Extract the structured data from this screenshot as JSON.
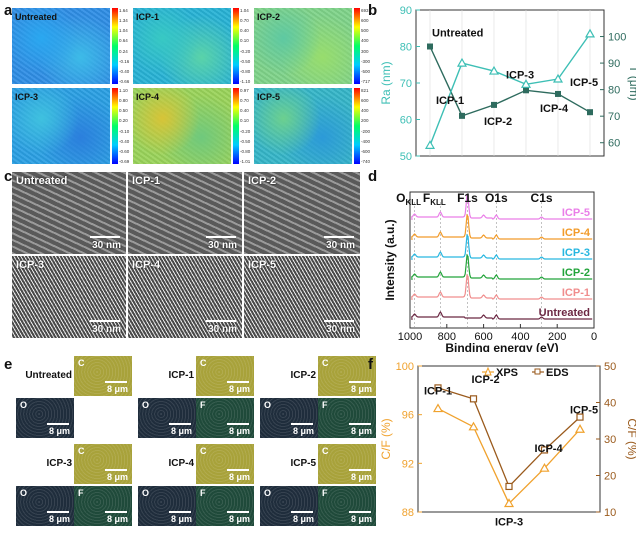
{
  "panels": {
    "a": {
      "letter": "a",
      "maps": [
        {
          "label": "Untreated",
          "colors": [
            "#2f8ee6",
            "#2aa8f0",
            "#3dbbe8"
          ],
          "ticks": [
            "1.64",
            "1.34",
            "1.04",
            "0.64",
            "0.24",
            "-0.16",
            "-0.40",
            "-0.66"
          ]
        },
        {
          "label": "ICP-1",
          "colors": [
            "#27b3d6",
            "#38c9c3",
            "#5ad3a9"
          ],
          "ticks": [
            "1.04",
            "0.70",
            "0.40",
            "0.10",
            "-0.20",
            "-0.50",
            "-0.80",
            "-1.10"
          ]
        },
        {
          "label": "ICP-2",
          "colors": [
            "#7fd48a",
            "#5ec9a2",
            "#98dd6d"
          ],
          "ticks": [
            "693",
            "600",
            "500",
            "400",
            "300",
            "-300",
            "-500",
            "-717"
          ]
        },
        {
          "label": "ICP-3",
          "colors": [
            "#2aa0e4",
            "#3fc1df",
            "#2b7fdd"
          ],
          "ticks": [
            "1.10",
            "0.80",
            "0.50",
            "0.20",
            "-0.10",
            "-0.40",
            "-0.60",
            "-0.69"
          ]
        },
        {
          "label": "ICP-4",
          "colors": [
            "#9ad45a",
            "#d7c437",
            "#6fc97d"
          ],
          "ticks": [
            "0.97",
            "0.70",
            "0.40",
            "0.10",
            "-0.20",
            "-0.50",
            "-0.80",
            "-1.01"
          ]
        },
        {
          "label": "ICP-5",
          "colors": [
            "#35b6c9",
            "#6cd08f",
            "#2c9ad8"
          ],
          "ticks": [
            "821",
            "600",
            "400",
            "200",
            "-200",
            "-400",
            "-600",
            "-740"
          ]
        }
      ]
    },
    "b": {
      "letter": "b"
    },
    "c": {
      "letter": "c",
      "images": [
        {
          "label": "Untreated",
          "scale": "30 nm"
        },
        {
          "label": "ICP-1",
          "scale": "30 nm"
        },
        {
          "label": "ICP-2",
          "scale": "30 nm"
        },
        {
          "label": "ICP-3",
          "scale": "30 nm"
        },
        {
          "label": "ICP-4",
          "scale": "30 nm"
        },
        {
          "label": "ICP-5",
          "scale": "30 nm"
        }
      ]
    },
    "d": {
      "letter": "d"
    },
    "e": {
      "letter": "e",
      "samples": [
        {
          "label": "Untreated",
          "scale": "8 μm"
        },
        {
          "label": "ICP-1",
          "scale": "8 μm"
        },
        {
          "label": "ICP-2",
          "scale": "8 μm"
        },
        {
          "label": "ICP-3",
          "scale": "8 μm"
        },
        {
          "label": "ICP-4",
          "scale": "8 μm"
        },
        {
          "label": "ICP-5",
          "scale": "8 μm"
        }
      ],
      "elements": {
        "c": "C",
        "o": "O",
        "f": "F"
      },
      "tile_colors": {
        "c": "#a8a23a",
        "o": "#1f2d3c",
        "f": "#1f4a3a"
      }
    },
    "f": {
      "letter": "f"
    }
  },
  "chart_data": [
    {
      "id": "b",
      "type": "line",
      "categories": [
        "Untreated",
        "ICP-1",
        "ICP-2",
        "ICP-3",
        "ICP-4",
        "ICP-5"
      ],
      "x": [
        1,
        2,
        3,
        4,
        5,
        6
      ],
      "series": [
        {
          "name": "Ra",
          "axis": "left",
          "values": [
            80,
            61,
            64,
            68,
            67,
            62
          ],
          "color": "#2e6b5e",
          "marker": "square"
        },
        {
          "name": "T",
          "axis": "right",
          "values": [
            59,
            90,
            87,
            82,
            84,
            101
          ],
          "color": "#3dbfb5",
          "marker": "triangle"
        }
      ],
      "point_labels": [
        "Untreated",
        "ICP-1",
        "ICP-2",
        "ICP-3",
        "ICP-4",
        "ICP-5"
      ],
      "ylabel_left": "Ra (nm)",
      "ylabel_right": "T (μm)",
      "ylim_left": [
        50,
        90
      ],
      "ylim_right": [
        55,
        110
      ],
      "yticks_left": [
        50,
        60,
        70,
        80,
        90
      ],
      "yticks_right": [
        60,
        70,
        80,
        90,
        100
      ],
      "left_color": "#3dbfb5",
      "right_color": "#2e6b5e"
    },
    {
      "id": "d",
      "type": "line",
      "title": "",
      "xlabel": "Binding energy (eV)",
      "ylabel": "Intensity (a.u.)",
      "xlim": [
        1000,
        0
      ],
      "xticks": [
        1000,
        800,
        600,
        400,
        200,
        0
      ],
      "peak_labels": [
        {
          "text": "O",
          "sub": "KLL",
          "x": 975
        },
        {
          "text": "F",
          "sub": "KLL",
          "x": 835
        },
        {
          "text": "F1s",
          "x": 688
        },
        {
          "text": "O1s",
          "x": 531
        },
        {
          "text": "C1s",
          "x": 285
        }
      ],
      "series": [
        {
          "name": "Untreated",
          "color": "#6b2742"
        },
        {
          "name": "ICP-1",
          "color": "#f08d8d"
        },
        {
          "name": "ICP-2",
          "color": "#22a43a"
        },
        {
          "name": "ICP-3",
          "color": "#27b6e0"
        },
        {
          "name": "ICP-4",
          "color": "#f29b2a"
        },
        {
          "name": "ICP-5",
          "color": "#ea7ee8"
        }
      ]
    },
    {
      "id": "f",
      "type": "line",
      "categories": [
        "ICP-1",
        "ICP-2",
        "ICP-3",
        "ICP-4",
        "ICP-5"
      ],
      "x": [
        1,
        2,
        3,
        4,
        5
      ],
      "series": [
        {
          "name": "XPS",
          "axis": "left",
          "values": [
            96.5,
            95.0,
            88.7,
            91.6,
            94.8
          ],
          "color": "#f0a22e",
          "marker": "triangle"
        },
        {
          "name": "EDS",
          "axis": "right",
          "values": [
            44,
            41,
            17,
            27,
            36
          ],
          "color": "#9a5a1c",
          "marker": "square"
        }
      ],
      "ylabel_left": "C/F (%)",
      "ylabel_right": "C/F (%)",
      "ylim_left": [
        88,
        100
      ],
      "ylim_right": [
        10,
        50
      ],
      "yticks_left": [
        88,
        92,
        96,
        100
      ],
      "yticks_right": [
        10,
        20,
        30,
        40,
        50
      ],
      "legend": [
        "XPS",
        "EDS"
      ],
      "legend_position": "top-right"
    }
  ]
}
